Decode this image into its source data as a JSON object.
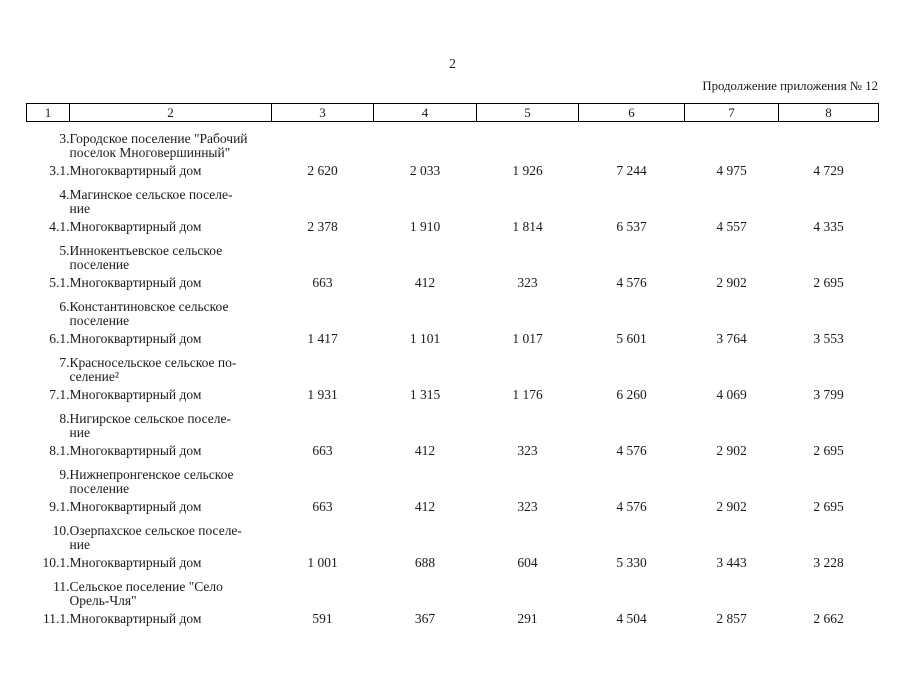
{
  "page": {
    "number": "2",
    "continuation_note": "Продолжение приложения № 12"
  },
  "table": {
    "columns": [
      "1",
      "2",
      "3",
      "4",
      "5",
      "6",
      "7",
      "8"
    ],
    "rows": [
      {
        "num": "3.",
        "name": "Городское поселение \"Рабочий\nпоселок Многовершинный\"",
        "values": [
          "",
          "",
          "",
          "",
          "",
          ""
        ]
      },
      {
        "num": "3.1.",
        "name": "Многоквартирный дом",
        "values": [
          "2 620",
          "2 033",
          "1 926",
          "7 244",
          "4 975",
          "4 729"
        ]
      },
      {
        "num": "4.",
        "name": "Магинское сельское поселе-\nние",
        "values": [
          "",
          "",
          "",
          "",
          "",
          ""
        ]
      },
      {
        "num": "4.1.",
        "name": "Многоквартирный дом",
        "values": [
          "2 378",
          "1 910",
          "1 814",
          "6 537",
          "4 557",
          "4 335"
        ]
      },
      {
        "num": "5.",
        "name": "Иннокентьевское сельское\nпоселение",
        "values": [
          "",
          "",
          "",
          "",
          "",
          ""
        ]
      },
      {
        "num": "5.1.",
        "name": "Многоквартирный дом",
        "values": [
          "663",
          "412",
          "323",
          "4 576",
          "2 902",
          "2 695"
        ]
      },
      {
        "num": "6.",
        "name": "Константиновское сельское\nпоселение",
        "values": [
          "",
          "",
          "",
          "",
          "",
          ""
        ]
      },
      {
        "num": "6.1.",
        "name": "Многоквартирный дом",
        "values": [
          "1 417",
          "1 101",
          "1 017",
          "5 601",
          "3 764",
          "3 553"
        ]
      },
      {
        "num": "7.",
        "name": "Красносельское сельское по-\nселение²",
        "values": [
          "",
          "",
          "",
          "",
          "",
          ""
        ]
      },
      {
        "num": "7.1.",
        "name": "Многоквартирный дом",
        "values": [
          "1 931",
          "1 315",
          "1 176",
          "6 260",
          "4 069",
          "3 799"
        ]
      },
      {
        "num": "8.",
        "name": "Нигирское сельское поселе-\nние",
        "values": [
          "",
          "",
          "",
          "",
          "",
          ""
        ]
      },
      {
        "num": "8.1.",
        "name": "Многоквартирный дом",
        "values": [
          "663",
          "412",
          "323",
          "4 576",
          "2 902",
          "2 695"
        ]
      },
      {
        "num": "9.",
        "name": "Нижнепронгенское сельское\nпоселение",
        "values": [
          "",
          "",
          "",
          "",
          "",
          ""
        ]
      },
      {
        "num": "9.1.",
        "name": "Многоквартирный дом",
        "values": [
          "663",
          "412",
          "323",
          "4 576",
          "2 902",
          "2 695"
        ]
      },
      {
        "num": "10.",
        "name": "Озерпахское сельское поселе-\nние",
        "values": [
          "",
          "",
          "",
          "",
          "",
          ""
        ]
      },
      {
        "num": "10.1.",
        "name": "Многоквартирный дом",
        "values": [
          "1 001",
          "688",
          "604",
          "5 330",
          "3 443",
          "3 228"
        ]
      },
      {
        "num": "11.",
        "name": "Сельское поселение \"Село\nОрель-Чля\"",
        "values": [
          "",
          "",
          "",
          "",
          "",
          ""
        ]
      },
      {
        "num": "11.1.",
        "name": "Многоквартирный дом",
        "values": [
          "591",
          "367",
          "291",
          "4 504",
          "2 857",
          "2 662"
        ]
      }
    ]
  }
}
